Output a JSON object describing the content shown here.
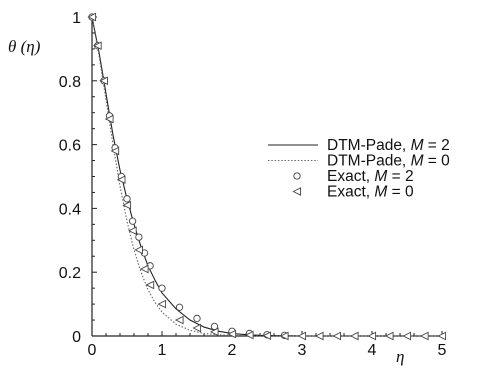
{
  "chart_data": {
    "type": "line",
    "title": "",
    "xlabel": "η",
    "ylabel": "θ (η)",
    "xlim": [
      0,
      5
    ],
    "ylim": [
      0,
      1
    ],
    "x_ticks": [
      "0",
      "1",
      "2",
      "3",
      "4",
      "5"
    ],
    "y_ticks": [
      "0",
      "0.2",
      "0.4",
      "0.6",
      "0.8",
      "1"
    ],
    "grid": false,
    "legend_position": "center-right",
    "legend": [
      {
        "prefix": "DTM-Pade, ",
        "param": "M",
        "suffix": " = 2",
        "style": "solid-line"
      },
      {
        "prefix": "DTM-Pade, ",
        "param": "M",
        "suffix": " = 0",
        "style": "dotted-line"
      },
      {
        "prefix": "Exact, ",
        "param": "M",
        "suffix": " = 2",
        "style": "circle-marker"
      },
      {
        "prefix": "Exact, ",
        "param": "M",
        "suffix": " = 0",
        "style": "triangle-marker"
      }
    ],
    "series": [
      {
        "name": "DTM-Pade, M = 2",
        "kind": "line",
        "dash": "solid",
        "x": [
          0,
          0.1,
          0.2,
          0.3,
          0.4,
          0.5,
          0.6,
          0.7,
          0.8,
          0.9,
          1.0,
          1.2,
          1.4,
          1.6,
          1.8,
          2.0,
          2.2,
          2.4,
          2.6,
          2.8,
          3.0,
          3.5,
          4.0,
          4.5,
          5.0
        ],
        "y": [
          1.0,
          0.89,
          0.76,
          0.63,
          0.52,
          0.43,
          0.35,
          0.28,
          0.22,
          0.175,
          0.135,
          0.085,
          0.05,
          0.028,
          0.015,
          0.008,
          0.004,
          0.002,
          0.001,
          0.0005,
          0.0,
          0.0,
          0.0,
          0.0,
          0.0
        ]
      },
      {
        "name": "DTM-Pade, M = 0",
        "kind": "line",
        "dash": "dotted",
        "x": [
          0,
          0.1,
          0.2,
          0.3,
          0.4,
          0.5,
          0.6,
          0.7,
          0.8,
          0.9,
          1.0,
          1.2,
          1.4,
          1.6,
          1.8,
          2.0,
          2.2,
          2.4,
          2.6,
          2.8,
          3.0,
          3.5,
          4.0,
          4.5,
          5.0
        ],
        "y": [
          1.0,
          0.88,
          0.74,
          0.6,
          0.47,
          0.36,
          0.27,
          0.2,
          0.145,
          0.105,
          0.075,
          0.037,
          0.018,
          0.008,
          0.004,
          0.002,
          0.001,
          0.0,
          0.0,
          0.0,
          0.0,
          0.0,
          0.0,
          0.0,
          0.0
        ]
      },
      {
        "name": "Exact, M = 2",
        "kind": "marker",
        "marker": "circle",
        "x": [
          0,
          0.08,
          0.17,
          0.25,
          0.33,
          0.42,
          0.5,
          0.58,
          0.67,
          0.75,
          0.83,
          1.0,
          1.25,
          1.5,
          1.75,
          2.0,
          2.25,
          2.5,
          2.75
        ],
        "y": [
          1.0,
          0.91,
          0.8,
          0.69,
          0.59,
          0.5,
          0.43,
          0.36,
          0.31,
          0.26,
          0.22,
          0.15,
          0.09,
          0.055,
          0.03,
          0.015,
          0.008,
          0.004,
          0.002
        ]
      },
      {
        "name": "Exact, M = 0",
        "kind": "marker",
        "marker": "triangle-left",
        "x": [
          0,
          0.08,
          0.17,
          0.25,
          0.33,
          0.42,
          0.5,
          0.58,
          0.67,
          0.75,
          0.83,
          1.0,
          1.25,
          1.5,
          1.75,
          2.0,
          2.25,
          2.5,
          2.75,
          3.0,
          3.25,
          3.5,
          3.75,
          4.0,
          4.25,
          4.5,
          4.75,
          5.0
        ],
        "y": [
          1.0,
          0.91,
          0.8,
          0.68,
          0.58,
          0.49,
          0.41,
          0.33,
          0.27,
          0.21,
          0.16,
          0.1,
          0.05,
          0.025,
          0.013,
          0.006,
          0.003,
          0.001,
          0.0,
          0.0,
          0.0,
          0.0,
          0.0,
          0.0,
          0.0,
          0.0,
          0.0,
          0.0
        ]
      }
    ]
  }
}
